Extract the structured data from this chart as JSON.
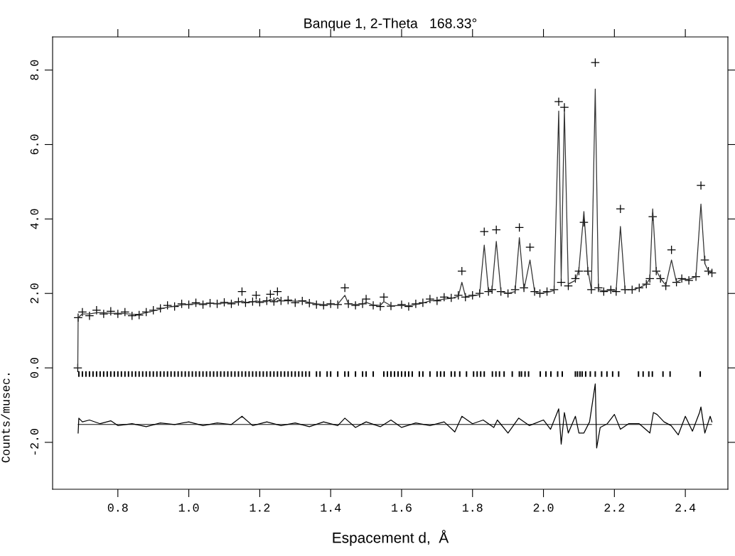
{
  "chart_data": {
    "type": "scatter",
    "title": "Banque 1, 2-Theta   168.33°",
    "xlabel": "Espacement d,  Å",
    "ylabel": "Counts/musec.",
    "xlim": [
      0.616,
      2.52
    ],
    "ylim": [
      -3.26,
      8.89
    ],
    "xticks": [
      {
        "value": 0.8,
        "label": "0.8"
      },
      {
        "value": 1.0,
        "label": "1.0"
      },
      {
        "value": 1.2,
        "label": "1.2"
      },
      {
        "value": 1.4,
        "label": "1.4"
      },
      {
        "value": 1.6,
        "label": "1.6"
      },
      {
        "value": 1.8,
        "label": "1.8"
      },
      {
        "value": 2.0,
        "label": "2.0"
      },
      {
        "value": 2.2,
        "label": "2.2"
      },
      {
        "value": 2.4,
        "label": "2.4"
      }
    ],
    "yticks": [
      {
        "value": -2,
        "label": "-2.0"
      },
      {
        "value": 0,
        "label": "0.0"
      },
      {
        "value": 2,
        "label": "2.0"
      },
      {
        "value": 4,
        "label": "4.0"
      },
      {
        "value": 6,
        "label": "6.0"
      },
      {
        "value": 8,
        "label": "8.0"
      }
    ],
    "ref_lines": [
      {
        "axis": "y",
        "value": -1.52,
        "color": "#000000"
      }
    ],
    "series": [
      {
        "marker": "cross",
        "color": "#000000",
        "x": [
          0.687,
          0.688,
          0.7,
          0.72,
          0.74,
          0.76,
          0.78,
          0.8,
          0.82,
          0.84,
          0.86,
          0.88,
          0.9,
          0.92,
          0.94,
          0.96,
          0.98,
          1.0,
          1.02,
          1.04,
          1.06,
          1.08,
          1.1,
          1.12,
          1.14,
          1.15,
          1.16,
          1.18,
          1.19,
          1.2,
          1.22,
          1.23,
          1.24,
          1.25,
          1.26,
          1.28,
          1.3,
          1.32,
          1.34,
          1.36,
          1.38,
          1.4,
          1.42,
          1.44,
          1.45,
          1.47,
          1.49,
          1.5,
          1.52,
          1.54,
          1.55,
          1.57,
          1.6,
          1.62,
          1.64,
          1.66,
          1.68,
          1.7,
          1.72,
          1.74,
          1.76,
          1.77,
          1.78,
          1.8,
          1.82,
          1.833,
          1.845,
          1.855,
          1.867,
          1.88,
          1.9,
          1.92,
          1.932,
          1.945,
          1.962,
          1.975,
          1.99,
          2.01,
          2.03,
          2.043,
          2.05,
          2.059,
          2.07,
          2.09,
          2.1,
          2.114,
          2.125,
          2.135,
          2.146,
          2.155,
          2.17,
          2.19,
          2.205,
          2.217,
          2.23,
          2.25,
          2.27,
          2.29,
          2.3,
          2.308,
          2.318,
          2.33,
          2.345,
          2.361,
          2.375,
          2.39,
          2.41,
          2.43,
          2.444,
          2.455,
          2.465,
          2.475
        ],
        "values": [
          0.0,
          1.35,
          1.5,
          1.4,
          1.55,
          1.45,
          1.52,
          1.45,
          1.5,
          1.4,
          1.42,
          1.5,
          1.55,
          1.6,
          1.68,
          1.65,
          1.72,
          1.7,
          1.75,
          1.7,
          1.74,
          1.72,
          1.76,
          1.72,
          1.78,
          2.05,
          1.75,
          1.78,
          1.95,
          1.76,
          1.8,
          1.98,
          1.78,
          2.05,
          1.8,
          1.82,
          1.75,
          1.8,
          1.74,
          1.7,
          1.68,
          1.72,
          1.7,
          2.15,
          1.72,
          1.68,
          1.72,
          1.85,
          1.68,
          1.65,
          1.9,
          1.66,
          1.7,
          1.65,
          1.72,
          1.75,
          1.85,
          1.8,
          1.9,
          1.88,
          1.95,
          2.6,
          1.9,
          1.95,
          2.0,
          3.66,
          2.05,
          2.1,
          3.71,
          2.05,
          2.0,
          2.1,
          3.77,
          2.15,
          3.24,
          2.05,
          2.0,
          2.05,
          2.1,
          7.15,
          2.3,
          7.0,
          2.2,
          2.4,
          2.6,
          3.91,
          2.6,
          2.1,
          8.2,
          2.15,
          2.05,
          2.1,
          2.05,
          4.27,
          2.1,
          2.1,
          2.15,
          2.25,
          2.4,
          4.06,
          2.6,
          2.4,
          2.2,
          3.17,
          2.3,
          2.4,
          2.35,
          2.45,
          4.9,
          2.9,
          2.6,
          2.55
        ]
      },
      {
        "type": "line",
        "color": "#333333",
        "x": [
          0.687,
          0.688,
          0.7,
          0.72,
          0.74,
          0.76,
          0.78,
          0.8,
          0.82,
          0.84,
          0.86,
          0.88,
          0.9,
          0.92,
          0.94,
          0.96,
          0.98,
          1.0,
          1.02,
          1.04,
          1.06,
          1.08,
          1.1,
          1.12,
          1.14,
          1.15,
          1.16,
          1.18,
          1.19,
          1.2,
          1.22,
          1.23,
          1.24,
          1.25,
          1.26,
          1.28,
          1.3,
          1.32,
          1.34,
          1.36,
          1.38,
          1.4,
          1.42,
          1.44,
          1.45,
          1.47,
          1.49,
          1.5,
          1.52,
          1.54,
          1.55,
          1.57,
          1.6,
          1.62,
          1.64,
          1.66,
          1.68,
          1.7,
          1.72,
          1.74,
          1.76,
          1.77,
          1.78,
          1.8,
          1.82,
          1.833,
          1.845,
          1.855,
          1.867,
          1.88,
          1.9,
          1.92,
          1.932,
          1.945,
          1.962,
          1.975,
          1.99,
          2.01,
          2.03,
          2.043,
          2.05,
          2.059,
          2.07,
          2.09,
          2.1,
          2.114,
          2.125,
          2.135,
          2.146,
          2.155,
          2.17,
          2.19,
          2.205,
          2.217,
          2.23,
          2.25,
          2.27,
          2.29,
          2.3,
          2.308,
          2.318,
          2.33,
          2.345,
          2.361,
          2.375,
          2.39,
          2.41,
          2.43,
          2.444,
          2.455,
          2.465,
          2.475
        ],
        "values": [
          0.0,
          1.35,
          1.45,
          1.45,
          1.48,
          1.48,
          1.47,
          1.47,
          1.46,
          1.44,
          1.44,
          1.48,
          1.53,
          1.58,
          1.63,
          1.66,
          1.69,
          1.71,
          1.72,
          1.72,
          1.73,
          1.73,
          1.74,
          1.75,
          1.76,
          1.8,
          1.76,
          1.77,
          1.8,
          1.78,
          1.78,
          1.84,
          1.79,
          1.88,
          1.8,
          1.8,
          1.79,
          1.79,
          1.76,
          1.72,
          1.7,
          1.7,
          1.71,
          1.95,
          1.72,
          1.7,
          1.71,
          1.76,
          1.69,
          1.68,
          1.78,
          1.67,
          1.68,
          1.67,
          1.7,
          1.74,
          1.8,
          1.82,
          1.85,
          1.87,
          1.92,
          2.3,
          1.92,
          1.93,
          1.97,
          3.3,
          2.05,
          2.1,
          3.4,
          2.05,
          2.0,
          2.05,
          3.5,
          2.1,
          2.9,
          2.05,
          2.0,
          2.03,
          2.08,
          6.9,
          2.4,
          6.95,
          2.25,
          2.35,
          2.65,
          4.2,
          2.65,
          2.1,
          7.49,
          2.1,
          2.07,
          2.08,
          2.08,
          3.8,
          2.1,
          2.1,
          2.15,
          2.25,
          2.4,
          4.27,
          2.62,
          2.4,
          2.22,
          2.9,
          2.3,
          2.38,
          2.38,
          2.45,
          4.4,
          2.8,
          2.6,
          2.55
        ]
      },
      {
        "type": "bar",
        "base": [
          -0.24,
          -0.24,
          -0.24,
          -0.24,
          -0.24,
          -0.24,
          -0.24,
          -0.24,
          -0.24,
          -0.24,
          -0.24,
          -0.24,
          -0.24,
          -0.24,
          -0.24,
          -0.24,
          -0.24,
          -0.24,
          -0.24,
          -0.24,
          -0.24,
          -0.24,
          -0.24,
          -0.24,
          -0.24,
          -0.24,
          -0.24,
          -0.24,
          -0.24,
          -0.24,
          -0.24,
          -0.24,
          -0.24,
          -0.24,
          -0.24,
          -0.24,
          -0.24,
          -0.24,
          -0.24,
          -0.24,
          -0.24,
          -0.24,
          -0.24,
          -0.24,
          -0.24,
          -0.24,
          -0.24,
          -0.24,
          -0.24,
          -0.24,
          -0.24,
          -0.24,
          -0.24,
          -0.24,
          -0.24,
          -0.24,
          -0.24,
          -0.24,
          -0.24,
          -0.24,
          -0.24,
          -0.24,
          -0.24,
          -0.24,
          -0.24,
          -0.24,
          -0.24,
          -0.24,
          -0.24,
          -0.24,
          -0.24,
          -0.24,
          -0.24,
          -0.24,
          -0.24,
          -0.24,
          -0.24,
          -0.24,
          -0.24,
          -0.24,
          -0.24,
          -0.24,
          -0.24,
          -0.24,
          -0.24,
          -0.24,
          -0.24,
          -0.24,
          -0.24,
          -0.24,
          -0.24,
          -0.24,
          -0.24,
          -0.24,
          -0.24,
          -0.24,
          -0.24,
          -0.24,
          -0.24,
          -0.24,
          -0.24,
          -0.24,
          -0.24,
          -0.24,
          -0.24,
          -0.24,
          -0.24,
          -0.24,
          -0.24,
          -0.24,
          -0.24,
          -0.24,
          -0.24,
          -0.24,
          -0.24,
          -0.24,
          -0.24,
          -0.24,
          -0.24,
          -0.24,
          -0.24,
          -0.24,
          -0.24,
          -0.24,
          -0.24,
          -0.24,
          -0.24,
          -0.24,
          -0.24,
          -0.24,
          -0.24,
          -0.24
        ],
        "color": "#000000",
        "x": [
          0.69,
          0.7,
          0.71,
          0.72,
          0.73,
          0.74,
          0.75,
          0.76,
          0.77,
          0.78,
          0.79,
          0.8,
          0.81,
          0.82,
          0.83,
          0.84,
          0.85,
          0.86,
          0.87,
          0.88,
          0.89,
          0.9,
          0.91,
          0.92,
          0.93,
          0.94,
          0.95,
          0.96,
          0.97,
          0.98,
          0.99,
          1.0,
          1.01,
          1.02,
          1.03,
          1.04,
          1.05,
          1.06,
          1.07,
          1.08,
          1.09,
          1.1,
          1.11,
          1.12,
          1.13,
          1.14,
          1.15,
          1.16,
          1.17,
          1.18,
          1.19,
          1.2,
          1.21,
          1.22,
          1.23,
          1.24,
          1.25,
          1.26,
          1.27,
          1.28,
          1.29,
          1.3,
          1.31,
          1.32,
          1.33,
          1.34,
          1.36,
          1.37,
          1.39,
          1.4,
          1.42,
          1.44,
          1.45,
          1.47,
          1.49,
          1.5,
          1.52,
          1.55,
          1.56,
          1.57,
          1.58,
          1.59,
          1.6,
          1.61,
          1.62,
          1.63,
          1.65,
          1.66,
          1.68,
          1.7,
          1.71,
          1.72,
          1.74,
          1.75,
          1.764,
          1.783,
          1.803,
          1.813,
          1.823,
          1.833,
          1.856,
          1.866,
          1.876,
          1.889,
          1.912,
          1.932,
          1.938,
          1.948,
          1.958,
          1.991,
          2.007,
          2.021,
          2.04,
          2.053,
          2.09,
          2.096,
          2.103,
          2.109,
          2.119,
          2.132,
          2.146,
          2.164,
          2.179,
          2.195,
          2.212,
          2.268,
          2.281,
          2.297,
          2.307,
          2.337,
          2.357,
          2.442
        ],
        "values": [
          0.15,
          0.15,
          0.15,
          0.15,
          0.15,
          0.15,
          0.15,
          0.15,
          0.15,
          0.15,
          0.15,
          0.15,
          0.15,
          0.15,
          0.15,
          0.15,
          0.15,
          0.15,
          0.15,
          0.15,
          0.15,
          0.15,
          0.15,
          0.15,
          0.15,
          0.15,
          0.15,
          0.15,
          0.15,
          0.15,
          0.15,
          0.15,
          0.15,
          0.15,
          0.15,
          0.15,
          0.15,
          0.15,
          0.15,
          0.15,
          0.15,
          0.15,
          0.15,
          0.15,
          0.15,
          0.15,
          0.15,
          0.15,
          0.15,
          0.15,
          0.15,
          0.15,
          0.15,
          0.15,
          0.15,
          0.15,
          0.15,
          0.15,
          0.15,
          0.15,
          0.15,
          0.15,
          0.15,
          0.15,
          0.15,
          0.15,
          0.15,
          0.15,
          0.15,
          0.15,
          0.15,
          0.15,
          0.15,
          0.15,
          0.15,
          0.15,
          0.15,
          0.15,
          0.15,
          0.15,
          0.15,
          0.15,
          0.15,
          0.15,
          0.15,
          0.15,
          0.15,
          0.15,
          0.15,
          0.15,
          0.15,
          0.15,
          0.15,
          0.15,
          0.15,
          0.15,
          0.15,
          0.15,
          0.15,
          0.15,
          0.15,
          0.15,
          0.15,
          0.15,
          0.15,
          0.15,
          0.15,
          0.15,
          0.15,
          0.15,
          0.15,
          0.15,
          0.15,
          0.15,
          0.15,
          0.15,
          0.15,
          0.15,
          0.15,
          0.15,
          0.15,
          0.15,
          0.15,
          0.15,
          0.15,
          0.15,
          0.15,
          0.15,
          0.15,
          0.15,
          0.15,
          0.15
        ]
      },
      {
        "type": "line",
        "color": "#000000",
        "x": [
          0.688,
          0.69,
          0.7,
          0.72,
          0.75,
          0.78,
          0.8,
          0.84,
          0.88,
          0.92,
          0.96,
          1.0,
          1.04,
          1.08,
          1.12,
          1.15,
          1.18,
          1.22,
          1.26,
          1.3,
          1.34,
          1.38,
          1.42,
          1.44,
          1.47,
          1.5,
          1.54,
          1.57,
          1.6,
          1.64,
          1.68,
          1.72,
          1.75,
          1.77,
          1.8,
          1.83,
          1.86,
          1.87,
          1.9,
          1.93,
          1.96,
          2.0,
          2.02,
          2.043,
          2.05,
          2.059,
          2.07,
          2.09,
          2.1,
          2.114,
          2.13,
          2.146,
          2.15,
          2.16,
          2.18,
          2.2,
          2.217,
          2.24,
          2.27,
          2.3,
          2.31,
          2.32,
          2.34,
          2.36,
          2.38,
          2.4,
          2.42,
          2.44,
          2.444,
          2.455,
          2.47,
          2.475
        ],
        "values": [
          -1.75,
          -1.35,
          -1.45,
          -1.4,
          -1.5,
          -1.42,
          -1.55,
          -1.5,
          -1.58,
          -1.48,
          -1.52,
          -1.45,
          -1.55,
          -1.48,
          -1.52,
          -1.3,
          -1.55,
          -1.45,
          -1.55,
          -1.48,
          -1.58,
          -1.45,
          -1.55,
          -1.35,
          -1.6,
          -1.45,
          -1.58,
          -1.4,
          -1.6,
          -1.48,
          -1.55,
          -1.45,
          -1.72,
          -1.3,
          -1.5,
          -1.4,
          -1.6,
          -1.4,
          -1.75,
          -1.35,
          -1.55,
          -1.4,
          -1.65,
          -1.1,
          -2.05,
          -1.2,
          -1.75,
          -1.3,
          -1.75,
          -1.75,
          -1.45,
          -0.43,
          -2.15,
          -1.6,
          -1.5,
          -1.25,
          -1.65,
          -1.5,
          -1.5,
          -1.75,
          -1.2,
          -1.25,
          -1.45,
          -1.55,
          -1.8,
          -1.3,
          -1.7,
          -1.2,
          -1.05,
          -1.75,
          -1.3,
          -1.45
        ]
      }
    ]
  }
}
